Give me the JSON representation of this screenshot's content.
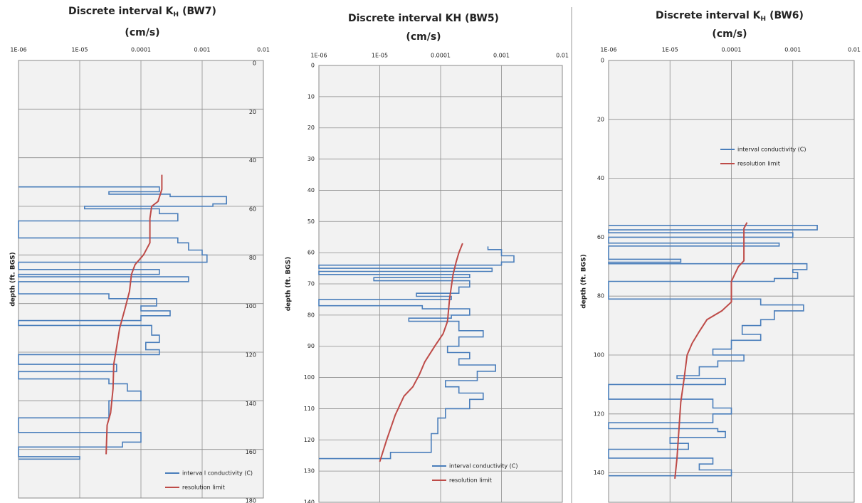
{
  "chart_data": [
    {
      "type": "line",
      "title": "Discrete interval K",
      "title_sub": "H",
      "title_end": "(BW7)",
      "subtitle": "(cm/s)",
      "ylabel": "depth (ft. BGS)",
      "xscale": "log",
      "y_inverted": true,
      "ytick_side": "right",
      "grid": true,
      "legend": "lower right",
      "xlim": [
        1e-06,
        0.01
      ],
      "xticks": [
        {
          "value": 1e-06,
          "label": "1E-06"
        },
        {
          "value": 1e-05,
          "label": "1E-05"
        },
        0.0001,
        0.001,
        0.01
      ],
      "ylim": [
        0,
        180
      ],
      "yticks": [
        0,
        20,
        40,
        60,
        80,
        100,
        120,
        140,
        160,
        180
      ],
      "series": [
        {
          "name": "interva l conductivity (C)",
          "color": "#4a7ebb",
          "x": [
            1e-06,
            0.0002,
            0.0002,
            3e-05,
            3e-05,
            0.0003,
            0.0003,
            0.0025,
            0.0025,
            0.0015,
            0.0015,
            1.2e-05,
            1.2e-05,
            0.0002,
            0.0002,
            0.0004,
            0.0004,
            1e-06,
            1e-06,
            0.0004,
            0.0004,
            0.0006,
            0.0006,
            0.001,
            0.001,
            0.0012,
            0.0012,
            1e-06,
            1e-06,
            0.0002,
            0.0002,
            1e-06,
            1e-06,
            0.0006,
            0.0006,
            1e-06,
            1e-06,
            3e-05,
            3e-05,
            0.00018,
            0.00018,
            0.0001,
            0.0001,
            0.0003,
            0.0003,
            0.0001,
            0.0001,
            1e-06,
            1e-06,
            0.00015,
            0.00015,
            0.0002,
            0.0002,
            0.00012,
            0.00012,
            0.0002,
            0.0002,
            1e-06,
            1e-06,
            4e-05,
            4e-05,
            1e-06,
            1e-06,
            3e-05,
            3e-05,
            6e-05,
            6e-05,
            0.0001,
            0.0001,
            3e-05,
            3e-05,
            1e-06,
            1e-06,
            0.0001,
            0.0001,
            5e-05,
            5e-05,
            1e-06,
            1e-06,
            1e-05,
            1e-05,
            1e-06
          ],
          "y": [
            52,
            52,
            54,
            54,
            55,
            55,
            56,
            56,
            59,
            59,
            60,
            60,
            61,
            61,
            63,
            63,
            66,
            66,
            73,
            73,
            75,
            75,
            78,
            78,
            80,
            80,
            83,
            83,
            86,
            86,
            88,
            88,
            89,
            89,
            91,
            91,
            96,
            96,
            98,
            98,
            101,
            101,
            103,
            103,
            105,
            105,
            107,
            107,
            109,
            109,
            113,
            113,
            116,
            116,
            119,
            119,
            121,
            121,
            125,
            125,
            128,
            128,
            131,
            131,
            133,
            133,
            136,
            136,
            140,
            140,
            147,
            147,
            153,
            153,
            157,
            157,
            159,
            159,
            163,
            163,
            164,
            164
          ]
        },
        {
          "name": "resolution limit",
          "color": "#be4b48",
          "x": [
            0.00022,
            0.00022,
            0.00019,
            0.00015,
            0.00014,
            0.00014,
            0.00011,
            8e-05,
            7e-05,
            6.5e-05,
            5.5e-05,
            4.5e-05,
            4e-05,
            3.6e-05,
            3.5e-05,
            3.2e-05,
            2.8e-05,
            2.7e-05
          ],
          "y": [
            47,
            53,
            58,
            60,
            65,
            75,
            80,
            84,
            88,
            95,
            102,
            110,
            118,
            125,
            135,
            145,
            150,
            162
          ]
        }
      ]
    },
    {
      "type": "line",
      "title": "Discrete interval KH (BW5)",
      "subtitle": "(cm/s)",
      "ylabel": "depth (ft. BGS)",
      "xscale": "log",
      "y_inverted": true,
      "ytick_side": "left",
      "grid": true,
      "legend": "lower right",
      "xlim": [
        1e-06,
        0.01
      ],
      "xticks": [
        {
          "value": 1e-06,
          "label": "1E-06"
        },
        {
          "value": 1e-05,
          "label": "1E-05"
        },
        0.0001,
        0.001,
        0.01
      ],
      "ylim": [
        0,
        140
      ],
      "yticks": [
        0,
        10,
        20,
        30,
        40,
        50,
        60,
        70,
        80,
        90,
        100,
        110,
        120,
        130,
        140
      ],
      "series": [
        {
          "name": "interval conductivity (C)",
          "color": "#4a7ebb",
          "x": [
            0.0006,
            0.0006,
            0.001,
            0.001,
            0.0016,
            0.0016,
            0.001,
            0.001,
            1e-06,
            1e-06,
            0.0007,
            0.0007,
            1e-06,
            1e-06,
            0.0003,
            0.0003,
            8e-06,
            8e-06,
            0.0003,
            0.0003,
            0.0002,
            0.0002,
            4e-05,
            4e-05,
            0.00015,
            0.00015,
            1e-06,
            1e-06,
            5e-05,
            5e-05,
            0.0003,
            0.0003,
            0.00015,
            0.00015,
            3e-05,
            3e-05,
            0.0002,
            0.0002,
            0.0005,
            0.0005,
            0.0002,
            0.0002,
            0.00013,
            0.00013,
            0.0003,
            0.0003,
            0.0002,
            0.0002,
            0.0008,
            0.0008,
            0.0004,
            0.0004,
            0.00012,
            0.00012,
            0.0002,
            0.0002,
            0.0005,
            0.0005,
            0.0003,
            0.0003,
            0.00012,
            0.00012,
            9e-05,
            9e-05,
            7e-05,
            7e-05,
            1.5e-05,
            1.5e-05,
            1e-06
          ],
          "y": [
            58,
            59,
            59,
            61,
            61,
            63,
            63,
            64,
            64,
            65,
            65,
            66,
            66,
            67,
            67,
            68,
            68,
            69,
            69,
            71,
            71,
            73,
            73,
            74,
            74,
            75,
            75,
            77,
            77,
            78,
            78,
            80,
            80,
            81,
            81,
            82,
            82,
            85,
            85,
            87,
            87,
            90,
            90,
            92,
            92,
            94,
            94,
            96,
            96,
            98,
            98,
            101,
            101,
            103,
            103,
            105,
            105,
            107,
            107,
            110,
            110,
            113,
            113,
            118,
            118,
            124,
            124,
            126,
            126
          ]
        },
        {
          "name": "resolution limit",
          "color": "#be4b48",
          "x": [
            0.00023,
            0.0002,
            0.00018,
            0.00016,
            0.00014,
            0.00013,
            0.00011,
            8e-05,
            5.5e-05,
            4.5e-05,
            3.5e-05,
            2.5e-05,
            1.8e-05,
            1.3e-05,
            1e-05
          ],
          "y": [
            57,
            60,
            63,
            67,
            75,
            82,
            86,
            90,
            95,
            99,
            103,
            106,
            112,
            120,
            127
          ]
        }
      ]
    },
    {
      "type": "line",
      "title": "Discrete interval K",
      "title_sub": "H",
      "title_end": "(BW6)",
      "subtitle": "(cm/s)",
      "ylabel": "depth (ft. BGS)",
      "xscale": "log",
      "y_inverted": true,
      "ytick_side": "left",
      "grid": true,
      "legend": "upper right",
      "xlim": [
        1e-06,
        0.01
      ],
      "xticks": [
        {
          "value": 1e-06,
          "label": "1E-06"
        },
        {
          "value": 1e-05,
          "label": "1E-05"
        },
        0.0001,
        0.001,
        0.01
      ],
      "ylim": [
        0,
        150
      ],
      "yticks": [
        0,
        20,
        40,
        60,
        80,
        100,
        120,
        140
      ],
      "series": [
        {
          "name": "interval conductivity (C)",
          "color": "#4a7ebb",
          "x": [
            1e-06,
            0.0025,
            0.0025,
            1e-06,
            1e-06,
            0.001,
            0.001,
            1e-06,
            1e-06,
            0.0006,
            0.0006,
            1e-06,
            1e-06,
            1.5e-05,
            1.5e-05,
            1e-06,
            1e-06,
            0.0017,
            0.0017,
            0.001,
            0.001,
            0.0012,
            0.0012,
            0.0005,
            0.0005,
            1e-06,
            1e-06,
            0.0003,
            0.0003,
            0.0015,
            0.0015,
            0.0005,
            0.0005,
            0.0003,
            0.0003,
            0.00015,
            0.00015,
            0.0003,
            0.0003,
            0.0001,
            0.0001,
            5e-05,
            5e-05,
            0.00016,
            0.00016,
            6e-05,
            6e-05,
            3e-05,
            3e-05,
            1.3e-05,
            1.3e-05,
            8e-05,
            8e-05,
            1e-06,
            1e-06,
            5e-05,
            5e-05,
            0.0001,
            0.0001,
            5e-05,
            5e-05,
            1e-06,
            1e-06,
            6e-05,
            6e-05,
            8e-05,
            8e-05,
            1e-05,
            1e-05,
            2e-05,
            2e-05,
            1e-06,
            1e-06,
            5e-05,
            5e-05,
            3e-05,
            3e-05,
            0.0001,
            0.0001,
            1e-06
          ],
          "y": [
            56,
            56,
            57.5,
            57.5,
            58.5,
            58.5,
            60,
            60,
            62,
            62,
            63,
            63,
            67.5,
            67.5,
            68.5,
            68.5,
            69,
            69,
            71,
            71,
            72,
            72,
            74,
            74,
            75,
            75,
            81,
            81,
            83,
            83,
            85,
            85,
            88,
            88,
            90,
            90,
            93,
            93,
            95,
            95,
            98,
            98,
            100,
            100,
            102,
            102,
            104,
            104,
            107,
            107,
            108,
            108,
            110,
            110,
            115,
            115,
            118,
            118,
            120,
            120,
            123,
            123,
            125,
            125,
            126,
            126,
            128,
            128,
            130,
            130,
            132,
            132,
            135,
            135,
            137,
            137,
            139,
            139,
            141,
            141
          ]
        },
        {
          "name": "resolution limit",
          "color": "#be4b48",
          "x": [
            0.00018,
            0.00016,
            0.00016,
            0.00013,
            0.0001,
            0.0001,
            7e-05,
            4e-05,
            3e-05,
            2.3e-05,
            1.9e-05,
            1.7e-05,
            1.5e-05,
            1.4e-05,
            1.3e-05,
            1.2e-05
          ],
          "y": [
            55,
            57,
            68,
            70,
            75,
            82,
            85,
            88,
            92,
            96,
            100,
            108,
            116,
            125,
            135,
            142
          ]
        }
      ]
    }
  ]
}
